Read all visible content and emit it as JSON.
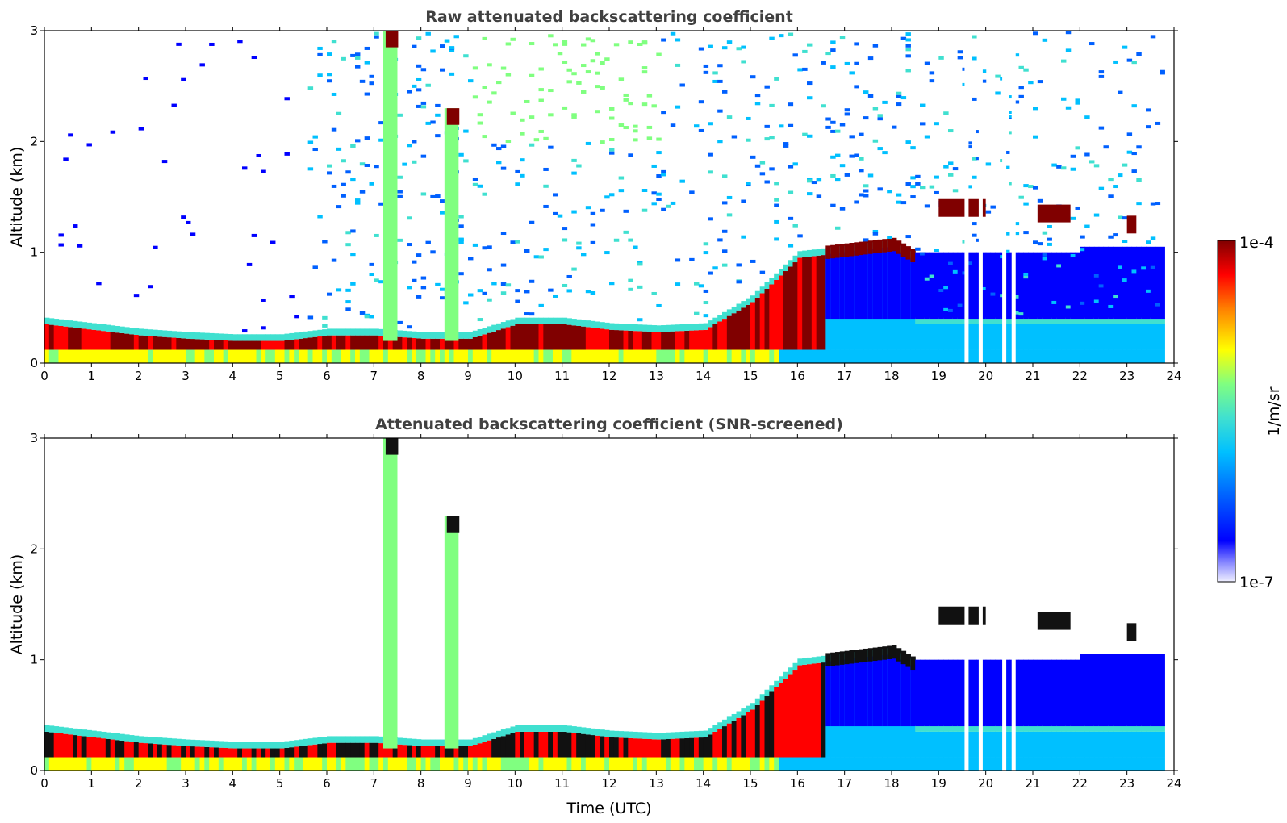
{
  "chart_data": [
    {
      "type": "heatmap",
      "title": "Raw attenuated backscattering coefficient",
      "xlabel": "",
      "ylabel": "Altitude (km)",
      "xlim": [
        0,
        24
      ],
      "ylim": [
        0,
        3
      ],
      "xticks": [
        "0",
        "1",
        "2",
        "3",
        "4",
        "5",
        "6",
        "7",
        "8",
        "9",
        "10",
        "11",
        "12",
        "13",
        "14",
        "15",
        "16",
        "17",
        "18",
        "19",
        "20",
        "21",
        "22",
        "23",
        "24"
      ],
      "yticks": [
        "0",
        "1",
        "2",
        "3"
      ],
      "data_end_time": 23.8,
      "boundary_layer_top_km": [
        [
          0,
          0.35
        ],
        [
          1,
          0.3
        ],
        [
          2,
          0.25
        ],
        [
          3,
          0.22
        ],
        [
          4,
          0.2
        ],
        [
          5,
          0.2
        ],
        [
          6,
          0.25
        ],
        [
          7,
          0.25
        ],
        [
          8,
          0.22
        ],
        [
          9,
          0.22
        ],
        [
          10,
          0.35
        ],
        [
          11,
          0.35
        ],
        [
          12,
          0.3
        ],
        [
          13,
          0.28
        ],
        [
          14,
          0.3
        ],
        [
          15,
          0.55
        ],
        [
          16,
          0.95
        ],
        [
          17,
          1.0
        ],
        [
          18,
          1.05
        ],
        [
          18.4,
          0.95
        ]
      ],
      "features": [
        {
          "label": "tall plume",
          "time_start": 7.2,
          "time_end": 7.5,
          "alt_top_km": 3.0
        },
        {
          "label": "plume",
          "time_start": 8.5,
          "time_end": 8.8,
          "alt_top_km": 2.3
        },
        {
          "label": "elevated layer",
          "time_start": 19.0,
          "time_end": 20.0,
          "alt_km": 1.4
        },
        {
          "label": "elevated layer",
          "time_start": 21.1,
          "time_end": 21.8,
          "alt_km": 1.35
        },
        {
          "label": "elevated layer",
          "time_start": 23.0,
          "time_end": 23.2,
          "alt_km": 1.25
        }
      ],
      "data_gaps_time": [
        19.55,
        19.85,
        20.35,
        20.55
      ]
    },
    {
      "type": "heatmap",
      "title": "Attenuated backscattering coefficient (SNR-screened)",
      "xlabel": "Time (UTC)",
      "ylabel": "Altitude (km)",
      "xlim": [
        0,
        24
      ],
      "ylim": [
        0,
        3
      ],
      "xticks": [
        "0",
        "1",
        "2",
        "3",
        "4",
        "5",
        "6",
        "7",
        "8",
        "9",
        "10",
        "11",
        "12",
        "13",
        "14",
        "15",
        "16",
        "17",
        "18",
        "19",
        "20",
        "21",
        "22",
        "23",
        "24"
      ],
      "yticks": [
        "0",
        "1",
        "2",
        "3"
      ],
      "data_end_time": 23.8
    }
  ],
  "colorbar": {
    "label": "1/m/sr",
    "max_label": "1e-4",
    "min_label": "1e-7",
    "colormap": [
      "#f0f0ff",
      "#8080ff",
      "#0000ff",
      "#0060ff",
      "#00c0ff",
      "#40e0d0",
      "#80ff80",
      "#ffff00",
      "#ff8000",
      "#ff0000",
      "#800000"
    ]
  }
}
